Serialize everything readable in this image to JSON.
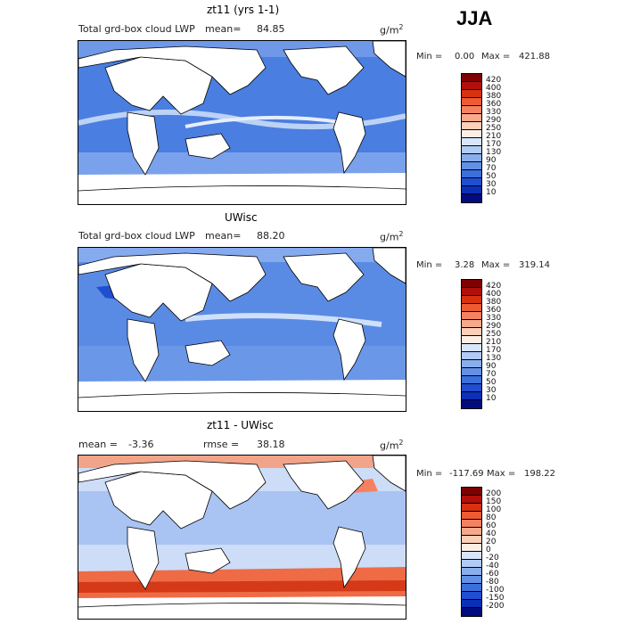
{
  "season": "JJA",
  "panels": [
    {
      "title": "zt11 (yrs 1-1)",
      "subtitle": "Total grd-box cloud LWP",
      "mean_label": "mean=",
      "mean_value": "84.85",
      "units": "g/m",
      "units_exp": "2",
      "min_label": "Min =",
      "min_value": "0.00",
      "max_label": "Max =",
      "max_value": "421.88",
      "levels": [
        "420",
        "400",
        "380",
        "360",
        "330",
        "290",
        "250",
        "210",
        "170",
        "130",
        "90",
        "70",
        "50",
        "30",
        "10"
      ],
      "colors": [
        "#7f0000",
        "#b10f0a",
        "#d93010",
        "#ee5a32",
        "#f48260",
        "#f8a98b",
        "#fbcfb8",
        "#fdeee4",
        "#d8e6fb",
        "#b0cbf5",
        "#88aeee",
        "#6390e6",
        "#3b6fdc",
        "#1f4fd0",
        "#0c2fb7",
        "#000c80"
      ]
    },
    {
      "title": "UWisc",
      "subtitle": "Total grd-box cloud LWP",
      "mean_label": "mean=",
      "mean_value": "88.20",
      "units": "g/m",
      "units_exp": "2",
      "min_label": "Min =",
      "min_value": "3.28",
      "max_label": "Max =",
      "max_value": "319.14",
      "levels": [
        "420",
        "400",
        "380",
        "360",
        "330",
        "290",
        "250",
        "210",
        "170",
        "130",
        "90",
        "70",
        "50",
        "30",
        "10"
      ],
      "colors": [
        "#7f0000",
        "#b10f0a",
        "#d93010",
        "#ee5a32",
        "#f48260",
        "#f8a98b",
        "#fbcfb8",
        "#fdeee4",
        "#d8e6fb",
        "#b0cbf5",
        "#88aeee",
        "#6390e6",
        "#3b6fdc",
        "#1f4fd0",
        "#0c2fb7",
        "#000c80"
      ]
    },
    {
      "title": "zt11 - UWisc",
      "subtitle": "",
      "mean_label": "mean =",
      "mean_value": "-3.36",
      "rmse_label": "rmse =",
      "rmse_value": "38.18",
      "units": "g/m",
      "units_exp": "2",
      "min_label": "Min =",
      "min_value": "-117.69",
      "max_label": "Max =",
      "max_value": "198.22",
      "levels": [
        "200",
        "150",
        "100",
        "80",
        "60",
        "40",
        "20",
        "0",
        "-20",
        "-40",
        "-60",
        "-80",
        "-100",
        "-150",
        "-200"
      ],
      "colors": [
        "#7f0000",
        "#b10f0a",
        "#d93010",
        "#ee5a32",
        "#f48260",
        "#f8a98b",
        "#fbcfb8",
        "#fdeee4",
        "#d8e6fb",
        "#b0cbf5",
        "#88aeee",
        "#6390e6",
        "#3b6fdc",
        "#1f4fd0",
        "#0c2fb7",
        "#000c80"
      ]
    }
  ]
}
